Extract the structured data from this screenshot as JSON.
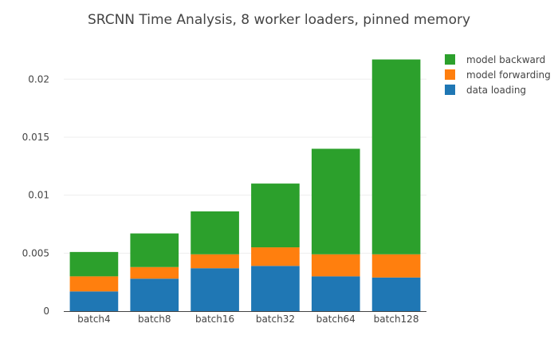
{
  "chart_data": {
    "type": "bar",
    "barmode": "stack",
    "title": "SRCNN Time Analysis, 8 worker loaders, pinned memory",
    "xlabel": "",
    "ylabel": "",
    "categories": [
      "batch4",
      "batch8",
      "batch16",
      "batch32",
      "batch64",
      "batch128"
    ],
    "ylim": [
      0,
      0.0227
    ],
    "yticks": [
      0,
      0.005,
      0.01,
      0.015,
      0.02
    ],
    "ytick_labels": [
      "0",
      "0.005",
      "0.01",
      "0.015",
      "0.02"
    ],
    "grid": true,
    "legend_position": "top-right",
    "series": [
      {
        "name": "data loading",
        "color": "#1f77b4",
        "values": [
          0.0017,
          0.0028,
          0.0037,
          0.0039,
          0.003,
          0.0029
        ]
      },
      {
        "name": "model forwarding",
        "color": "#ff7f0e",
        "values": [
          0.0013,
          0.001,
          0.0012,
          0.0016,
          0.0019,
          0.002
        ]
      },
      {
        "name": "model backward",
        "color": "#2ca02c",
        "values": [
          0.0021,
          0.0029,
          0.0037,
          0.0055,
          0.0091,
          0.0168
        ]
      }
    ],
    "legend_order": [
      "model backward",
      "model forwarding",
      "data loading"
    ]
  }
}
